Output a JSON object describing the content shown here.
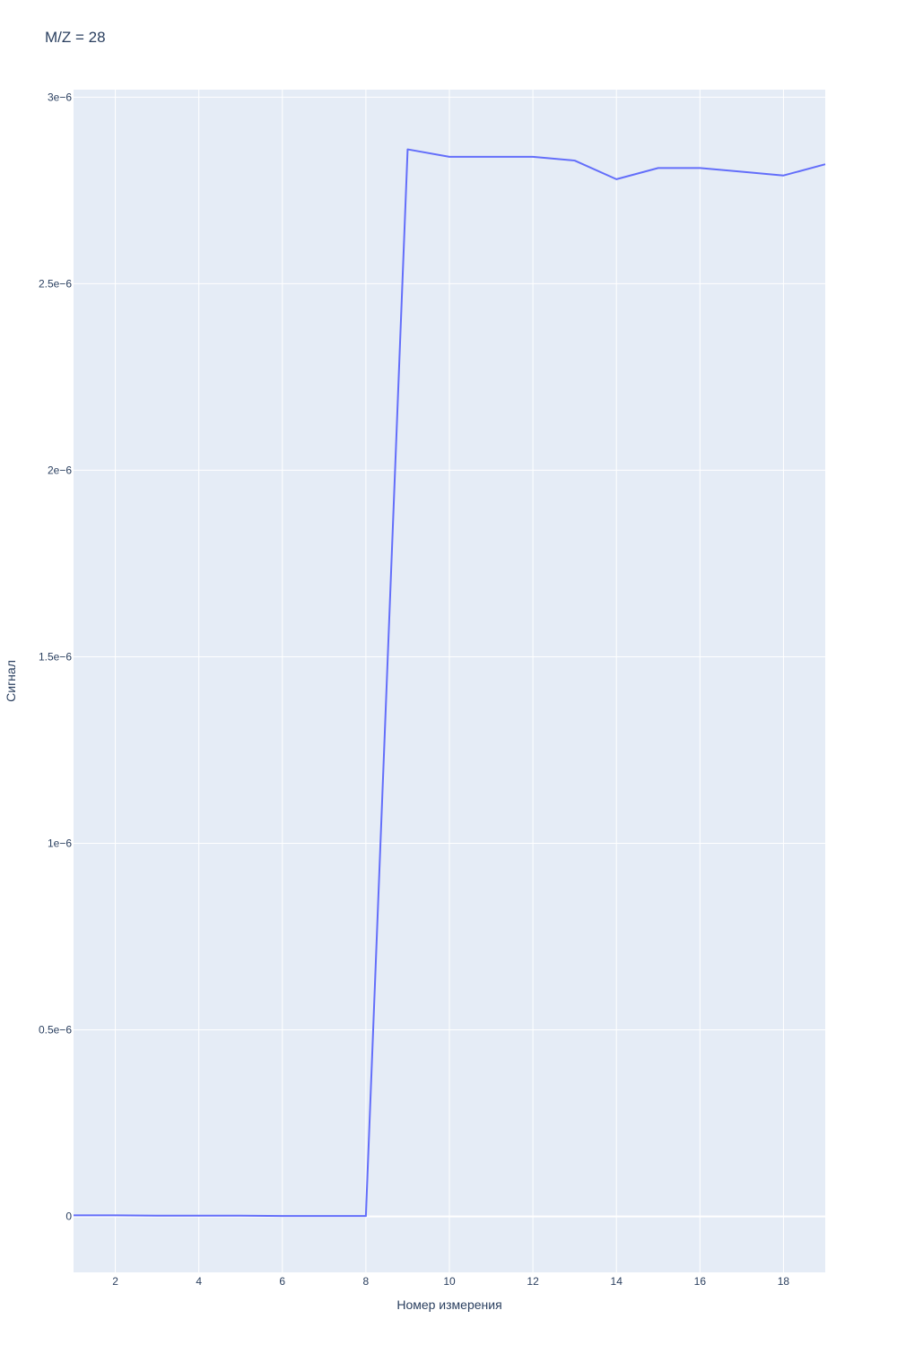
{
  "chart_data": {
    "type": "line",
    "title": "M/Z = 28",
    "xlabel": "Номер измерения",
    "ylabel": "Сигнал",
    "xlim": [
      1,
      19
    ],
    "ylim": [
      -1.5e-07,
      3.02e-06
    ],
    "x_ticks": [
      2,
      4,
      6,
      8,
      10,
      12,
      14,
      16,
      18
    ],
    "y_ticks": [
      {
        "value": 0,
        "label": "0"
      },
      {
        "value": 5e-07,
        "label": "0.5e−6"
      },
      {
        "value": 1e-06,
        "label": "1e−6"
      },
      {
        "value": 1.5e-06,
        "label": "1.5e−6"
      },
      {
        "value": 2e-06,
        "label": "2e−6"
      },
      {
        "value": 2.5e-06,
        "label": "2.5e−6"
      },
      {
        "value": 3e-06,
        "label": "3e−6"
      }
    ],
    "grid": true,
    "colors": {
      "line": "#636efa",
      "plot_bg": "#e5ecf6",
      "grid": "#ffffff",
      "text": "#2a3f5f"
    },
    "series": [
      {
        "x": [
          1,
          2,
          3,
          4,
          5,
          6,
          7,
          8,
          9,
          10,
          11,
          12,
          13,
          14,
          15,
          16,
          17,
          18,
          19
        ],
        "y": [
          3e-09,
          3e-09,
          2e-09,
          2e-09,
          2e-09,
          1e-09,
          1e-09,
          1e-09,
          2.86e-06,
          2.84e-06,
          2.84e-06,
          2.84e-06,
          2.83e-06,
          2.78e-06,
          2.81e-06,
          2.81e-06,
          2.8e-06,
          2.79e-06,
          2.82e-06
        ]
      }
    ]
  }
}
